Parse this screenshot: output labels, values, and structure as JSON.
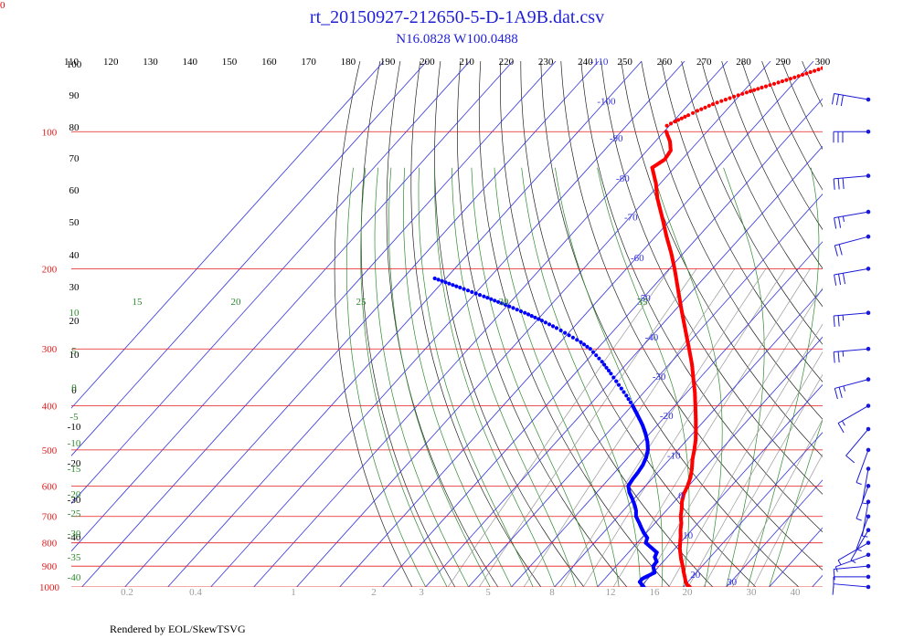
{
  "page": {
    "title": "rt_20150927-212650-5-D-1A9B.dat.csv",
    "subtitle": "N16.0828 W100.0488",
    "corner_label": "0",
    "footer": "Rendered by EOL/SkewTSVG"
  },
  "colors": {
    "isobar": "#e31a1a",
    "isotherm": "#3333dd",
    "dry_adiabat": "#222222",
    "moist_adiabat": "#2e8b2e",
    "mixing_ratio": "#9a9a9a",
    "temperature": "#ff0000",
    "dewpoint": "#0000ff",
    "wind_barb": "#1a1ad6",
    "title": "#1f1fd6"
  },
  "chart_data": {
    "type": "skew-t log-p",
    "pressure_range_hpa": [
      1000,
      70
    ],
    "top_temperature_labels": [
      "110",
      "120",
      "130",
      "140",
      "150",
      "160",
      "170",
      "180",
      "190",
      "200",
      "210",
      "220",
      "230",
      "240",
      "250",
      "260",
      "270",
      "280",
      "290",
      "300"
    ],
    "top_temperature_values": [
      110,
      120,
      130,
      140,
      150,
      160,
      170,
      180,
      190,
      200,
      210,
      220,
      230,
      240,
      250,
      260,
      270,
      280,
      290,
      300
    ],
    "isobars": [
      {
        "p": 100,
        "label": "100"
      },
      {
        "p": 200,
        "label": "200"
      },
      {
        "p": 300,
        "label": "300"
      },
      {
        "p": 400,
        "label": "400"
      },
      {
        "p": 500,
        "label": "500"
      },
      {
        "p": 600,
        "label": "600"
      },
      {
        "p": 700,
        "label": "700"
      },
      {
        "p": 800,
        "label": "800"
      },
      {
        "p": 900,
        "label": "900"
      },
      {
        "p": 1000,
        "label": "1000"
      }
    ],
    "isotherm_labels": [
      {
        "t": -110,
        "label": "-110"
      },
      {
        "t": -100,
        "label": "-100"
      },
      {
        "t": -90,
        "label": "-90"
      },
      {
        "t": -80,
        "label": "-80"
      },
      {
        "t": -70,
        "label": "-70"
      },
      {
        "t": -60,
        "label": "-60"
      },
      {
        "t": -50,
        "label": "-50"
      },
      {
        "t": -40,
        "label": "-40"
      },
      {
        "t": -30,
        "label": "-30"
      },
      {
        "t": -20,
        "label": "-20"
      },
      {
        "t": -10,
        "label": "-10"
      },
      {
        "t": 0,
        "label": "0"
      },
      {
        "t": 10,
        "label": "10"
      },
      {
        "t": 20,
        "label": "20"
      },
      {
        "t": 30,
        "label": "30"
      }
    ],
    "dry_adiabat_labels": [
      "100",
      "90",
      "80",
      "70",
      "60",
      "50",
      "40",
      "30",
      "20",
      "10",
      "0",
      "-10",
      "-20",
      "-30",
      "-40"
    ],
    "moist_adiabat_labels": [
      "10",
      "5",
      "0",
      "-5",
      "-10",
      "-15",
      "-20",
      "-25",
      "-30",
      "-35",
      "-40"
    ],
    "moist_adiabat_top_labels": [
      "15",
      "20",
      "25",
      "30",
      "35"
    ],
    "mixing_ratio_labels": [
      "0.2",
      "0.4",
      "1",
      "2",
      "3",
      "5",
      "8",
      "12",
      "16",
      "20",
      "30",
      "40"
    ],
    "series": [
      {
        "name": "temperature",
        "points": [
          [
            1000,
            21.5
          ],
          [
            990,
            20.5
          ],
          [
            975,
            19.5
          ],
          [
            950,
            18.2
          ],
          [
            925,
            16.8
          ],
          [
            900,
            15.5
          ],
          [
            875,
            14.0
          ],
          [
            850,
            12.6
          ],
          [
            825,
            11.2
          ],
          [
            800,
            10.0
          ],
          [
            775,
            8.8
          ],
          [
            750,
            7.4
          ],
          [
            725,
            6.2
          ],
          [
            700,
            4.6
          ],
          [
            675,
            3.3
          ],
          [
            650,
            1.8
          ],
          [
            625,
            0.6
          ],
          [
            600,
            -0.2
          ],
          [
            575,
            -1.3
          ],
          [
            550,
            -2.8
          ],
          [
            525,
            -4.6
          ],
          [
            500,
            -6.2
          ],
          [
            475,
            -8.0
          ],
          [
            450,
            -10.2
          ],
          [
            425,
            -12.6
          ],
          [
            400,
            -15.2
          ],
          [
            375,
            -18.0
          ],
          [
            350,
            -21.2
          ],
          [
            325,
            -24.6
          ],
          [
            300,
            -28.6
          ],
          [
            275,
            -33.0
          ],
          [
            250,
            -37.8
          ],
          [
            225,
            -43.0
          ],
          [
            200,
            -48.8
          ],
          [
            185,
            -52.8
          ],
          [
            170,
            -57.4
          ],
          [
            155,
            -62.2
          ],
          [
            140,
            -67.6
          ],
          [
            130,
            -71.0
          ],
          [
            120,
            -75.2
          ],
          [
            115,
            -74.0
          ],
          [
            110,
            -74.5
          ],
          [
            105,
            -76.6
          ],
          [
            100,
            -79.5
          ],
          [
            97,
            -80.6
          ],
          [
            95,
            -79.6
          ],
          [
            92,
            -77.8
          ],
          [
            90,
            -76.6
          ],
          [
            87,
            -74.4
          ],
          [
            85,
            -72.4
          ],
          [
            82,
            -69.0
          ],
          [
            80,
            -66.5
          ],
          [
            78,
            -63.7
          ],
          [
            76,
            -61.0
          ],
          [
            74,
            -58.4
          ],
          [
            72,
            -55.8
          ]
        ]
      },
      {
        "name": "dewpoint",
        "points": [
          [
            1000,
            10.8
          ],
          [
            990,
            10.0
          ],
          [
            975,
            8.8
          ],
          [
            960,
            8.7
          ],
          [
            950,
            9.2
          ],
          [
            930,
            10.3
          ],
          [
            900,
            8.6
          ],
          [
            880,
            8.5
          ],
          [
            860,
            7.1
          ],
          [
            840,
            6.6
          ],
          [
            800,
            2.0
          ],
          [
            780,
            1.3
          ],
          [
            760,
            -0.6
          ],
          [
            740,
            -2.3
          ],
          [
            720,
            -4.0
          ],
          [
            700,
            -5.8
          ],
          [
            680,
            -7.0
          ],
          [
            660,
            -8.6
          ],
          [
            640,
            -10.4
          ],
          [
            620,
            -12.4
          ],
          [
            600,
            -14.0
          ],
          [
            580,
            -14.4
          ],
          [
            560,
            -14.6
          ],
          [
            540,
            -15.0
          ],
          [
            520,
            -15.8
          ],
          [
            500,
            -17.0
          ],
          [
            480,
            -18.8
          ],
          [
            460,
            -21.0
          ],
          [
            440,
            -23.6
          ],
          [
            420,
            -26.6
          ],
          [
            400,
            -29.8
          ],
          [
            380,
            -33.4
          ],
          [
            360,
            -37.4
          ],
          [
            340,
            -41.6
          ],
          [
            320,
            -46.2
          ],
          [
            300,
            -51.6
          ],
          [
            290,
            -55.2
          ],
          [
            280,
            -59.4
          ],
          [
            270,
            -63.8
          ],
          [
            260,
            -68.8
          ],
          [
            250,
            -74.4
          ],
          [
            240,
            -80.6
          ],
          [
            230,
            -87.4
          ],
          [
            220,
            -94.8
          ],
          [
            210,
            -102.6
          ]
        ]
      }
    ],
    "wind_barbs": [
      {
        "p": 1000,
        "speed_kt": 12,
        "dir_deg": 95
      },
      {
        "p": 950,
        "speed_kt": 12,
        "dir_deg": 90
      },
      {
        "p": 900,
        "speed_kt": 11,
        "dir_deg": 85
      },
      {
        "p": 850,
        "speed_kt": 9,
        "dir_deg": 70
      },
      {
        "p": 800,
        "speed_kt": 8,
        "dir_deg": 60
      },
      {
        "p": 750,
        "speed_kt": 7,
        "dir_deg": 30
      },
      {
        "p": 700,
        "speed_kt": 6,
        "dir_deg": 20
      },
      {
        "p": 650,
        "speed_kt": 5,
        "dir_deg": 10
      },
      {
        "p": 600,
        "speed_kt": 6,
        "dir_deg": 20
      },
      {
        "p": 550,
        "speed_kt": 8,
        "dir_deg": 10
      },
      {
        "p": 500,
        "speed_kt": 7,
        "dir_deg": 20
      },
      {
        "p": 450,
        "speed_kt": 12,
        "dir_deg": 40
      },
      {
        "p": 400,
        "speed_kt": 15,
        "dir_deg": 60
      },
      {
        "p": 350,
        "speed_kt": 25,
        "dir_deg": 75
      },
      {
        "p": 300,
        "speed_kt": 25,
        "dir_deg": 85
      },
      {
        "p": 250,
        "speed_kt": 25,
        "dir_deg": 85
      },
      {
        "p": 200,
        "speed_kt": 30,
        "dir_deg": 80
      },
      {
        "p": 170,
        "speed_kt": 20,
        "dir_deg": 75
      },
      {
        "p": 150,
        "speed_kt": 25,
        "dir_deg": 80
      },
      {
        "p": 125,
        "speed_kt": 30,
        "dir_deg": 85
      },
      {
        "p": 100,
        "speed_kt": 30,
        "dir_deg": 90
      },
      {
        "p": 85,
        "speed_kt": 30,
        "dir_deg": 100
      }
    ]
  }
}
